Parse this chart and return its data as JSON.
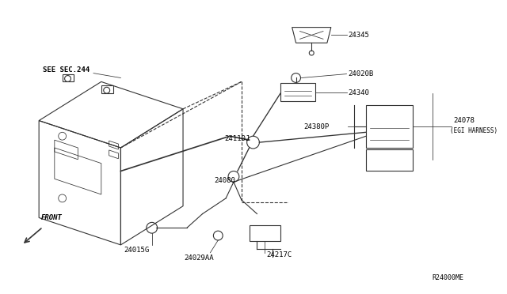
{
  "title": "",
  "background_color": "#ffffff",
  "fig_width": 6.4,
  "fig_height": 3.72,
  "dpi": 100,
  "labels": {
    "see_sec": "SEE SEC.244",
    "front": "FRONT",
    "ref_code": "R24000ME",
    "p24345": "24345",
    "p24020B": "24020B",
    "p24340": "24340",
    "p24078": "24078",
    "p24078b": "(EGI HARNESS)",
    "p24380P": "24380P",
    "p24110J": "24110J",
    "p24080": "24080",
    "p24015G": "24015G",
    "p24029AA": "24029AA",
    "p24217C": "24217C"
  },
  "line_color": "#333333",
  "text_color": "#000000",
  "line_width": 0.8
}
